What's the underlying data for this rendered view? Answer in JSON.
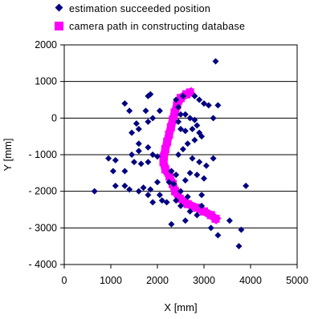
{
  "chart_data": {
    "type": "scatter",
    "xlabel": "X [mm]",
    "ylabel": "Y [mm]",
    "xlim": [
      0,
      5000
    ],
    "ylim": [
      -4000,
      2000
    ],
    "xticks": [
      0,
      1000,
      2000,
      3000,
      4000,
      5000
    ],
    "xtick_labels": [
      "0",
      "1000",
      "2000",
      "3000",
      "4000",
      "5000"
    ],
    "yticks": [
      2000,
      1000,
      0,
      -1000,
      -2000,
      -3000,
      -4000
    ],
    "ytick_labels": [
      "2000",
      "1000",
      "0",
      "- 1000",
      "- 2000",
      "- 3000",
      "- 4000"
    ],
    "grid": "horizontal",
    "legend_position": "top",
    "series": [
      {
        "name": "estimation succeeded position",
        "marker": "diamond",
        "color": "#000080",
        "points": [
          [
            3250,
            1550
          ],
          [
            3300,
            350
          ],
          [
            3200,
            0
          ],
          [
            3900,
            -1850
          ],
          [
            2950,
            -2400
          ],
          [
            3550,
            -2800
          ],
          [
            3150,
            -3000
          ],
          [
            3800,
            -3050
          ],
          [
            3300,
            -3200
          ],
          [
            3750,
            -3500
          ],
          [
            2300,
            -2900
          ],
          [
            2600,
            -2800
          ],
          [
            2850,
            -2650
          ],
          [
            2700,
            -2550
          ],
          [
            2500,
            -2400
          ],
          [
            2200,
            -2300
          ],
          [
            2400,
            -2250
          ],
          [
            2050,
            -2100
          ],
          [
            1900,
            -2300
          ],
          [
            1800,
            -2100
          ],
          [
            1850,
            -1950
          ],
          [
            2250,
            -1750
          ],
          [
            2000,
            -1750
          ],
          [
            1700,
            -1900
          ],
          [
            1600,
            -2000
          ],
          [
            1400,
            -1950
          ],
          [
            1300,
            -1850
          ],
          [
            1100,
            -1850
          ],
          [
            650,
            -2000
          ],
          [
            1050,
            -1450
          ],
          [
            1300,
            -1450
          ],
          [
            1500,
            -1200
          ],
          [
            1650,
            -1250
          ],
          [
            1800,
            -1200
          ],
          [
            2000,
            -1050
          ],
          [
            1900,
            -1000
          ],
          [
            1100,
            -1150
          ],
          [
            950,
            -1100
          ],
          [
            1450,
            -1000
          ],
          [
            1600,
            -900
          ],
          [
            1800,
            -800
          ],
          [
            1600,
            -700
          ],
          [
            1450,
            -400
          ],
          [
            1600,
            -300
          ],
          [
            1550,
            -150
          ],
          [
            1800,
            -100
          ],
          [
            1900,
            0
          ],
          [
            1750,
            200
          ],
          [
            1400,
            200
          ],
          [
            1300,
            400
          ],
          [
            1800,
            600
          ],
          [
            1850,
            650
          ],
          [
            2050,
            200
          ],
          [
            2400,
            500
          ],
          [
            2550,
            600
          ],
          [
            2800,
            600
          ],
          [
            2900,
            500
          ],
          [
            3000,
            400
          ],
          [
            3100,
            350
          ],
          [
            2450,
            300
          ],
          [
            2500,
            100
          ],
          [
            2600,
            100
          ],
          [
            2700,
            0
          ],
          [
            2800,
            -50
          ],
          [
            2450,
            -100
          ],
          [
            2500,
            -300
          ],
          [
            2600,
            -350
          ],
          [
            2750,
            -300
          ],
          [
            2850,
            -200
          ],
          [
            2900,
            -400
          ],
          [
            2950,
            -500
          ],
          [
            2800,
            -600
          ],
          [
            2650,
            -700
          ],
          [
            2550,
            -850
          ],
          [
            2450,
            -1000
          ],
          [
            2750,
            -1100
          ],
          [
            2900,
            -1200
          ],
          [
            3050,
            -1300
          ],
          [
            3200,
            -1100
          ],
          [
            2700,
            -1500
          ],
          [
            2850,
            -1550
          ],
          [
            3000,
            -1650
          ],
          [
            2600,
            -1700
          ],
          [
            2350,
            -1800
          ],
          [
            2300,
            -1450
          ],
          [
            2400,
            -1550
          ],
          [
            2500,
            -2000
          ],
          [
            2650,
            -2150
          ],
          [
            2950,
            -2100
          ],
          [
            2100,
            -2250
          ]
        ]
      },
      {
        "name": "camera path in constructing database",
        "marker": "square",
        "color": "#ff00ff",
        "points": [
          [
            2700,
            700
          ],
          [
            2620,
            650
          ],
          [
            2500,
            550
          ],
          [
            2420,
            350
          ],
          [
            2370,
            150
          ],
          [
            2330,
            -50
          ],
          [
            2290,
            -250
          ],
          [
            2250,
            -450
          ],
          [
            2210,
            -650
          ],
          [
            2170,
            -850
          ],
          [
            2140,
            -1050
          ],
          [
            2130,
            -1200
          ],
          [
            2170,
            -1400
          ],
          [
            2260,
            -1600
          ],
          [
            2330,
            -1800
          ],
          [
            2380,
            -2000
          ],
          [
            2480,
            -2200
          ],
          [
            2650,
            -2350
          ],
          [
            2850,
            -2450
          ],
          [
            3000,
            -2550
          ],
          [
            3150,
            -2650
          ],
          [
            3250,
            -2750
          ]
        ]
      }
    ]
  }
}
